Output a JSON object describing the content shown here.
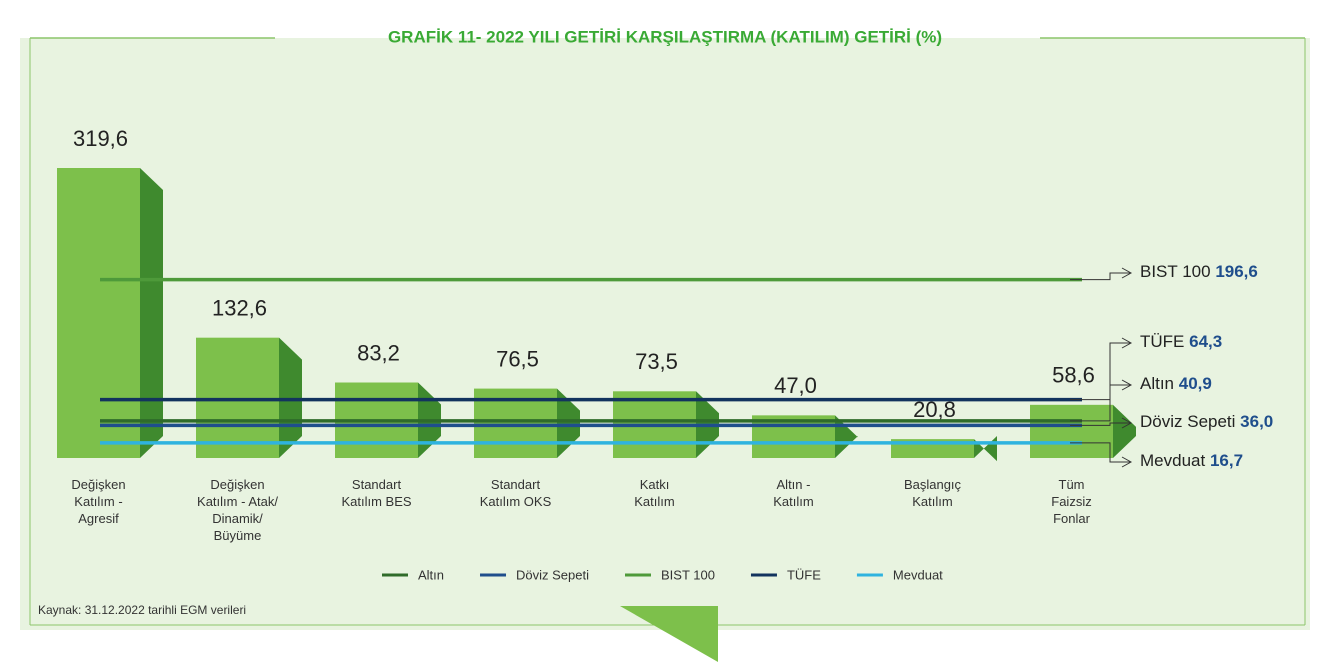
{
  "chart_data": {
    "type": "bar",
    "title": "GRAFİK 11- 2022 YILI GETİRİ KARŞILAŞTIRMA (KATILIM) GETİRİ (%)",
    "categories": [
      "Değişken\nKatılım -\nAgresif",
      "Değişken\nKatılım - Atak/\nDinamik/\nBüyüme",
      "Standart\nKatılım BES",
      "Standart\nKatılım OKS",
      "Katkı\nKatılım",
      "Altın -\nKatılım",
      "Başlangıç\nKatılım",
      "Tüm\nFaizsiz\nFonlar"
    ],
    "values": [
      319.6,
      132.6,
      83.2,
      76.5,
      73.5,
      47.0,
      20.8,
      58.6
    ],
    "value_labels": [
      "319,6",
      "132,6",
      "83,2",
      "76,5",
      "73,5",
      "47,0",
      "20,8",
      "58,6"
    ],
    "color": "#7dc04b",
    "series": [
      {
        "name": "Altın",
        "color": "#2f6b2a",
        "value": 40.9,
        "value_label": "40,9"
      },
      {
        "name": "Döviz Sepeti",
        "color": "#1f4e8c",
        "value": 36.0,
        "value_label": "36,0"
      },
      {
        "name": "BIST 100",
        "color": "#4e9a3a",
        "value": 196.6,
        "value_label": "196,6"
      },
      {
        "name": "TÜFE",
        "color": "#12335e",
        "value": 64.3,
        "value_label": "64,3"
      },
      {
        "name": "Mevduat",
        "color": "#2fb3df",
        "value": 16.7,
        "value_label": "16,7"
      }
    ],
    "source": "Kaynak: 31.12.2022 tarihli EGM verileri"
  }
}
